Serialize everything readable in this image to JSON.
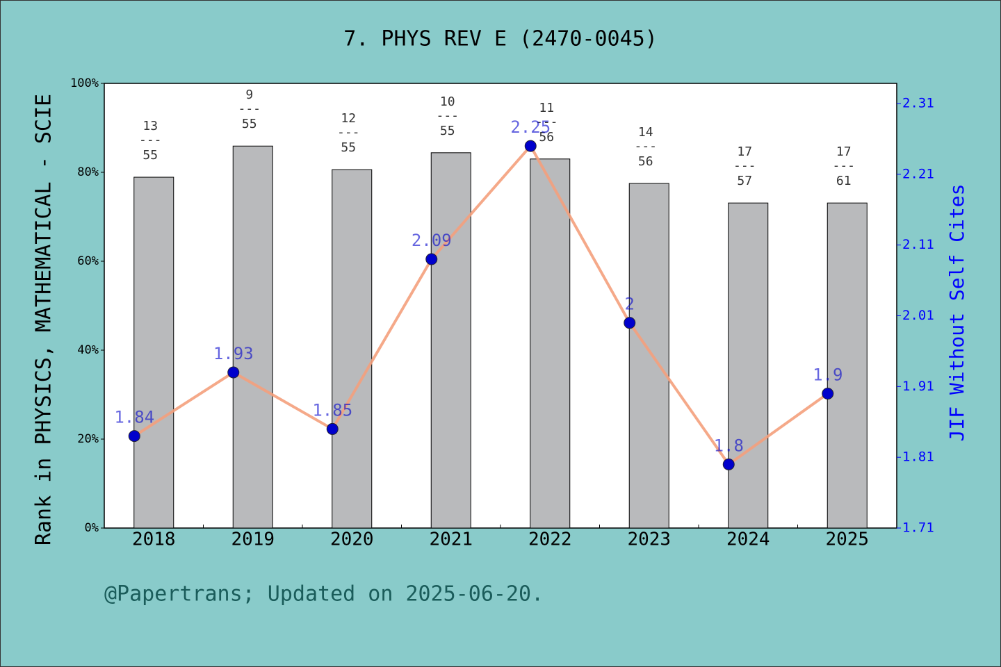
{
  "chart_data": {
    "type": "bar-line",
    "title": "7. PHYS REV E (2470-0045)",
    "ylabel": "Rank in PHYSICS, MATHEMATICAL - SCIE",
    "y2label": "JIF Without Self Cites",
    "footer": "@Papertrans; Updated on 2025-06-20.",
    "categories": [
      "2018",
      "2019",
      "2020",
      "2021",
      "2022",
      "2023",
      "2024",
      "2025"
    ],
    "series": [
      {
        "name": "Rank",
        "type": "bar",
        "color": "#b9babc",
        "values": [
          78.9,
          85.9,
          80.6,
          84.4,
          83.0,
          77.5,
          73.1,
          73.1
        ],
        "rank_labels": [
          "13",
          "9",
          "12",
          "10",
          "11",
          "14",
          "17",
          "17"
        ],
        "total_labels": [
          "55",
          "55",
          "55",
          "55",
          "56",
          "56",
          "57",
          "61"
        ]
      },
      {
        "name": "JIF Without Self Cites",
        "type": "line",
        "axis": "y2",
        "color": "#f4a07c",
        "marker_color": "#0000cc",
        "values": [
          1.84,
          1.93,
          1.85,
          2.09,
          2.25,
          2,
          1.8,
          1.9
        ]
      }
    ],
    "separator": "---",
    "ylim": [
      0,
      100
    ],
    "yticks": [
      {
        "value": 0,
        "label": "0%"
      },
      {
        "value": 20,
        "label": "20%"
      },
      {
        "value": 40,
        "label": "40%"
      },
      {
        "value": 60,
        "label": "60%"
      },
      {
        "value": 80,
        "label": "80%"
      },
      {
        "value": 100,
        "label": "100%"
      }
    ],
    "y2lim": [
      1.71,
      2.31
    ],
    "y2ticks": [
      1.71,
      1.81,
      1.91,
      2.01,
      2.11,
      2.21,
      2.31
    ]
  }
}
